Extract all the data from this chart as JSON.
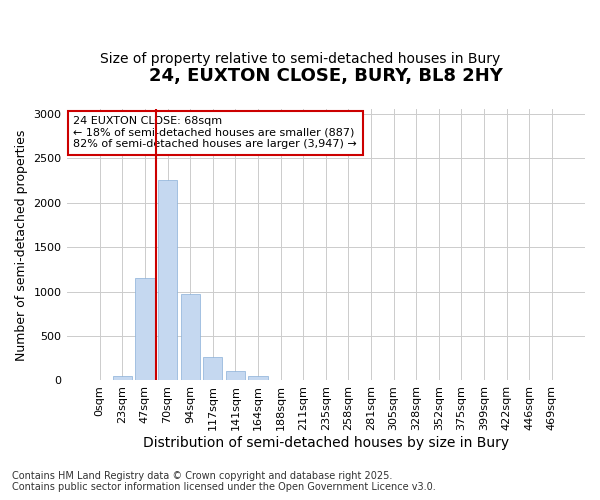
{
  "title": "24, EUXTON CLOSE, BURY, BL8 2HY",
  "subtitle": "Size of property relative to semi-detached houses in Bury",
  "xlabel": "Distribution of semi-detached houses by size in Bury",
  "ylabel": "Number of semi-detached properties",
  "footnote1": "Contains HM Land Registry data © Crown copyright and database right 2025.",
  "footnote2": "Contains public sector information licensed under the Open Government Licence v3.0.",
  "annotation_title": "24 EUXTON CLOSE: 68sqm",
  "annotation_line2": "← 18% of semi-detached houses are smaller (887)",
  "annotation_line3": "82% of semi-detached houses are larger (3,947) →",
  "bar_labels": [
    "0sqm",
    "23sqm",
    "47sqm",
    "70sqm",
    "94sqm",
    "117sqm",
    "141sqm",
    "164sqm",
    "188sqm",
    "211sqm",
    "235sqm",
    "258sqm",
    "281sqm",
    "305sqm",
    "328sqm",
    "352sqm",
    "375sqm",
    "399sqm",
    "422sqm",
    "446sqm",
    "469sqm"
  ],
  "bar_values": [
    0,
    55,
    1150,
    2250,
    975,
    265,
    105,
    45,
    10,
    5,
    0,
    3,
    0,
    0,
    0,
    0,
    0,
    0,
    0,
    0,
    0
  ],
  "bar_color": "#c5d8f0",
  "bar_edge_color": "#8ab0d8",
  "red_line_x": 3,
  "red_line_color": "#cc0000",
  "annotation_box_edge": "#cc0000",
  "annotation_box_fill": "#ffffff",
  "ylim": [
    0,
    3050
  ],
  "yticks": [
    0,
    500,
    1000,
    1500,
    2000,
    2500,
    3000
  ],
  "grid_color": "#cccccc",
  "bg_color": "#ffffff",
  "plot_bg_color": "#ffffff",
  "title_fontsize": 13,
  "subtitle_fontsize": 10,
  "xlabel_fontsize": 10,
  "ylabel_fontsize": 9,
  "tick_fontsize": 8,
  "annotation_fontsize": 8,
  "footnote_fontsize": 7
}
